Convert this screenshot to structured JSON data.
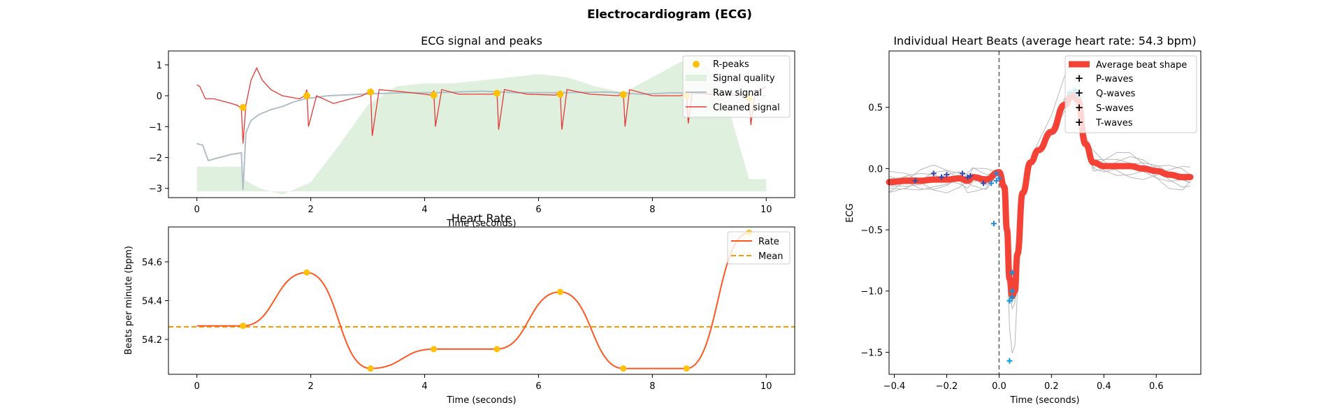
{
  "suptitle": "Electrocardiogram (ECG)",
  "chart_data": [
    {
      "type": "line",
      "title": "ECG signal and peaks",
      "xlabel": "Time (seconds)",
      "ylabel": "",
      "xlim": [
        -0.5,
        10.5
      ],
      "ylim": [
        -3.3,
        1.45
      ],
      "xticks": [
        0,
        2,
        4,
        6,
        8,
        10
      ],
      "yticks": [
        1,
        0,
        -1,
        -2,
        -3
      ],
      "grid": false,
      "legend": {
        "placement": "top-right",
        "entries": [
          "R-peaks",
          "Signal quality",
          "Raw signal",
          "Cleaned signal"
        ]
      },
      "r_peaks": {
        "name": "R-peaks",
        "x": [
          0.81,
          1.93,
          3.05,
          4.16,
          5.27,
          6.38,
          7.49,
          8.6,
          9.7
        ],
        "y": [
          -0.38,
          0.0,
          0.12,
          0.02,
          0.08,
          0.05,
          0.04,
          0.02,
          -0.08
        ]
      },
      "signal_quality": {
        "name": "Signal quality",
        "x": [
          0,
          0.8,
          0.81,
          1.1,
          1.5,
          2.0,
          2.5,
          3.0,
          3.5,
          4.0,
          4.5,
          5.0,
          5.5,
          6.0,
          6.5,
          7.0,
          7.5,
          8.0,
          8.5,
          8.8,
          9.1,
          9.4,
          9.7,
          9.71,
          10.0
        ],
        "y": [
          -2.3,
          -2.3,
          -2.7,
          -3.0,
          -3.2,
          -2.8,
          -1.6,
          -0.3,
          0.3,
          0.4,
          0.4,
          0.5,
          0.6,
          0.7,
          0.6,
          0.3,
          0.1,
          0.6,
          1.1,
          1.3,
          0.7,
          -0.8,
          -2.7,
          -2.7,
          -2.7
        ],
        "baseline": -3.1
      },
      "raw_signal": {
        "name": "Raw signal",
        "x": [
          0,
          0.1,
          0.2,
          0.4,
          0.6,
          0.78,
          0.81,
          0.86,
          0.95,
          1.1,
          1.3,
          1.5,
          1.7,
          1.9,
          2.3,
          2.9,
          3.6,
          4.2,
          5.0,
          5.6,
          6.4,
          7.2,
          7.8,
          8.4,
          9.0,
          9.6,
          10.0
        ],
        "y": [
          -1.55,
          -1.6,
          -2.1,
          -2.0,
          -1.9,
          -1.85,
          -3.05,
          -1.2,
          -0.8,
          -0.6,
          -0.45,
          -0.35,
          -0.2,
          -0.1,
          0.0,
          0.05,
          0.1,
          0.1,
          0.15,
          0.1,
          0.1,
          0.12,
          0.05,
          0.1,
          0.05,
          0.05,
          0.0
        ]
      },
      "cleaned_signal": {
        "name": "Cleaned signal",
        "x": [
          0,
          0.05,
          0.15,
          0.3,
          0.5,
          0.7,
          0.78,
          0.81,
          0.86,
          0.95,
          1.05,
          1.15,
          1.3,
          1.5,
          1.8,
          1.9,
          1.93,
          1.96,
          2.1,
          2.4,
          2.6,
          2.9,
          3.0,
          3.05,
          3.08,
          3.2,
          3.5,
          4.0,
          4.1,
          4.16,
          4.19,
          4.3,
          4.6,
          5.2,
          5.27,
          5.3,
          5.4,
          5.8,
          6.3,
          6.38,
          6.41,
          6.5,
          6.9,
          7.4,
          7.49,
          7.52,
          7.6,
          8.0,
          8.5,
          8.6,
          8.63,
          8.7,
          9.0,
          9.6,
          9.7,
          9.73,
          9.8,
          10.0
        ],
        "y": [
          0.35,
          0.3,
          -0.1,
          -0.1,
          -0.2,
          -0.3,
          -0.4,
          -1.55,
          -0.3,
          0.5,
          0.9,
          0.5,
          0.2,
          0.0,
          -0.1,
          0.0,
          0.2,
          -1.0,
          0.0,
          -0.25,
          -0.15,
          0.0,
          0.1,
          0.2,
          -1.3,
          0.2,
          0.15,
          0.05,
          0.02,
          0.15,
          -1.0,
          0.2,
          0.05,
          0.05,
          0.15,
          -1.1,
          0.2,
          0.05,
          0.02,
          0.15,
          -1.1,
          0.2,
          0.05,
          0.0,
          0.12,
          -1.0,
          0.2,
          0.0,
          0.0,
          0.1,
          -0.9,
          0.1,
          0.05,
          0.0,
          0.0,
          -0.95,
          0.1,
          0.3
        ]
      }
    },
    {
      "type": "line",
      "title": "Heart Rate",
      "xlabel": "Time (seconds)",
      "ylabel": "Beats per minute (bpm)",
      "xlim": [
        -0.5,
        10.5
      ],
      "ylim": [
        54.02,
        54.78
      ],
      "xticks": [
        0,
        2,
        4,
        6,
        8,
        10
      ],
      "yticks": [
        54.6,
        54.4,
        54.2
      ],
      "grid": false,
      "legend": {
        "placement": "top-right",
        "entries": [
          "Rate",
          "Mean"
        ]
      },
      "rate": {
        "name": "Rate",
        "x": [
          0.0,
          0.81,
          1.93,
          3.05,
          4.16,
          5.27,
          6.38,
          7.49,
          8.6,
          9.7
        ],
        "y": [
          54.27,
          54.27,
          54.545,
          54.05,
          54.15,
          54.15,
          54.445,
          54.05,
          54.05,
          54.75
        ]
      },
      "mean": {
        "name": "Mean",
        "value": 54.265
      }
    },
    {
      "type": "line",
      "title": "Individual Heart Beats (average heart rate: 54.3 bpm)",
      "xlabel": "Time (seconds)",
      "ylabel": "ECG",
      "xlim": [
        -0.42,
        0.77
      ],
      "ylim": [
        -1.68,
        0.96
      ],
      "xticks": [
        -0.4,
        -0.2,
        0.0,
        0.2,
        0.4,
        0.6
      ],
      "yticks": [
        0.5,
        0.0,
        -0.5,
        -1.0,
        -1.5
      ],
      "grid": false,
      "legend": {
        "placement": "top-right",
        "entries": [
          "Average beat shape",
          "P-waves",
          "Q-waves",
          "S-waves",
          "T-waves"
        ]
      },
      "average_beat": {
        "name": "Average beat shape",
        "x": [
          -0.42,
          -0.35,
          -0.3,
          -0.25,
          -0.2,
          -0.15,
          -0.12,
          -0.1,
          -0.05,
          0.0,
          0.02,
          0.03,
          0.04,
          0.05,
          0.06,
          0.07,
          0.09,
          0.12,
          0.15,
          0.2,
          0.25,
          0.28,
          0.3,
          0.33,
          0.36,
          0.4,
          0.45,
          0.5,
          0.55,
          0.6,
          0.65,
          0.7,
          0.73
        ],
        "y": [
          -0.11,
          -0.1,
          -0.1,
          -0.09,
          -0.09,
          -0.08,
          -0.1,
          -0.07,
          -0.09,
          -0.03,
          -0.15,
          -0.5,
          -0.9,
          -1.04,
          -1.0,
          -0.7,
          -0.2,
          0.05,
          0.15,
          0.3,
          0.52,
          0.6,
          0.56,
          0.2,
          0.05,
          0.02,
          0.02,
          0.02,
          0.0,
          -0.02,
          -0.05,
          -0.07,
          -0.07
        ]
      },
      "p_waves": {
        "name": "P-waves",
        "x": [
          -0.32,
          -0.25,
          -0.22,
          -0.2,
          -0.14,
          -0.12,
          -0.11,
          -0.06
        ],
        "y": [
          -0.1,
          -0.04,
          -0.07,
          -0.05,
          -0.04,
          -0.07,
          -0.06,
          -0.12
        ]
      },
      "q_waves": {
        "name": "Q-waves",
        "x": [
          -0.02,
          -0.01,
          0.0,
          -0.03,
          -0.01
        ],
        "y": [
          -0.45,
          -0.04,
          -0.08,
          -0.12,
          -0.1
        ]
      },
      "s_waves": {
        "name": "S-waves",
        "x": [
          0.04,
          0.05,
          0.05,
          0.05,
          0.04
        ],
        "y": [
          -1.57,
          -1.05,
          -1.0,
          -0.85,
          -1.08
        ]
      },
      "t_waves": {
        "name": "T-waves",
        "x": [
          0.27,
          0.29,
          0.3
        ],
        "y": [
          0.62,
          0.64,
          0.6
        ]
      }
    }
  ],
  "colors": {
    "r_peaks": "#FFC107",
    "signal_quality": "#DFF0DF",
    "raw_signal": "#B0BEC5",
    "cleaned_signal": "#E53935",
    "rate": "#FF5722",
    "mean": "#FF9800",
    "average_beat": "#F44336",
    "p_waves": "#3949AB",
    "q_waves": "#1E88E5",
    "s_waves": "#039BE5",
    "t_waves": "#03A9F4",
    "beat_traces": "#B8B8B8",
    "zero_line": "#666666"
  }
}
